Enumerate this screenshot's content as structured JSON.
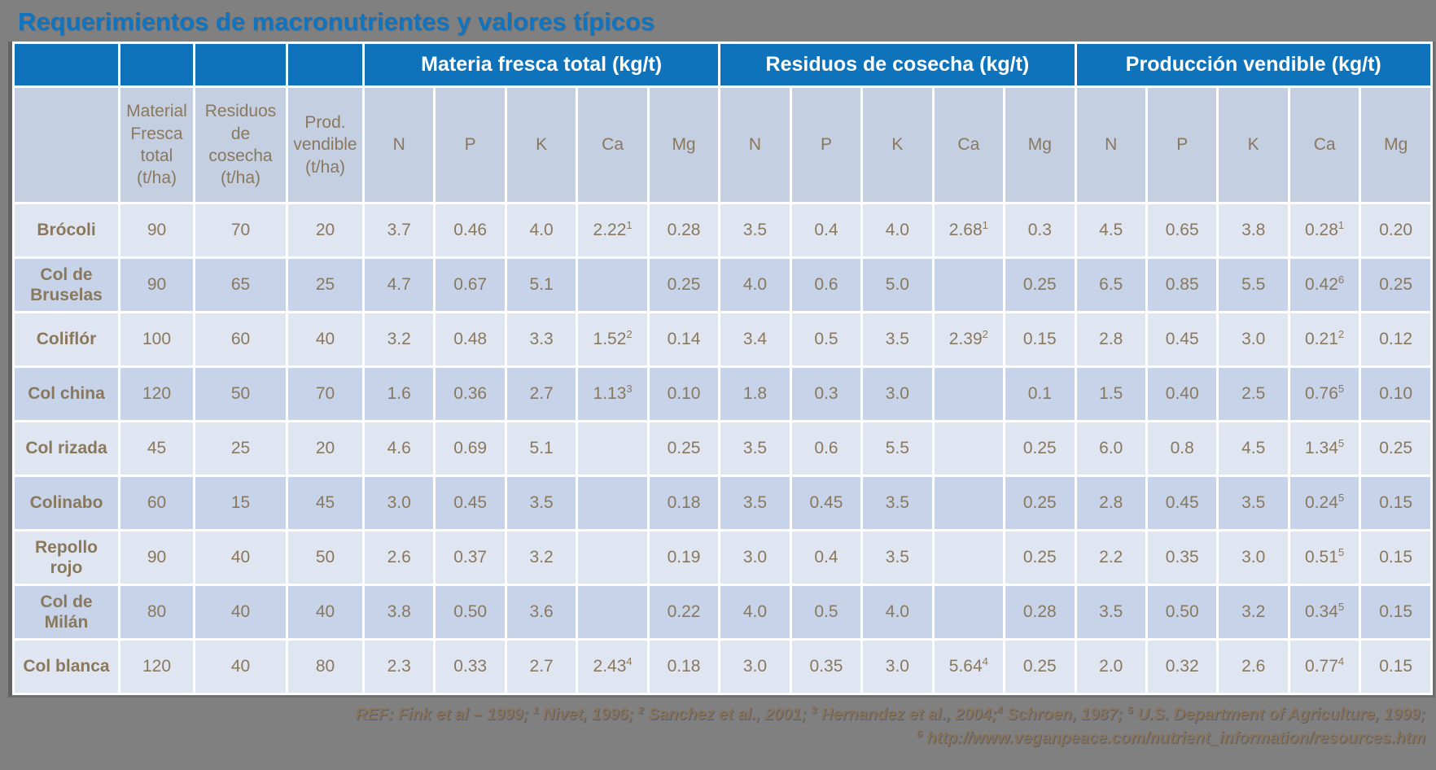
{
  "title": "Requerimientos de macronutrientes y valores típicos",
  "table": {
    "group_headers": [
      "Materia fresca total (kg/t)",
      "Residuos de cosecha (kg/t)",
      "Producción vendible (kg/t)"
    ],
    "area_headers": [
      "Material Fresca total (t/ha)",
      "Residuos de cosecha (t/ha)",
      "Prod. vendible (t/ha)"
    ],
    "nutrient_headers": [
      "N",
      "P",
      "K",
      "Ca",
      "Mg"
    ],
    "rows": [
      {
        "crop": "Brócoli",
        "area": [
          "90",
          "70",
          "20"
        ],
        "materia_fresca": [
          "3.7",
          "0.46",
          "4.0",
          "2.22^1",
          "0.28"
        ],
        "residuos": [
          "3.5",
          "0.4",
          "4.0",
          "2.68^1",
          "0.3"
        ],
        "produccion": [
          "4.5",
          "0.65",
          "3.8",
          "0.28^1",
          "0.20"
        ]
      },
      {
        "crop": "Col de Bruselas",
        "area": [
          "90",
          "65",
          "25"
        ],
        "materia_fresca": [
          "4.7",
          "0.67",
          "5.1",
          "",
          "0.25"
        ],
        "residuos": [
          "4.0",
          "0.6",
          "5.0",
          "",
          "0.25"
        ],
        "produccion": [
          "6.5",
          "0.85",
          "5.5",
          "0.42^6",
          "0.25"
        ]
      },
      {
        "crop": "Coliflór",
        "area": [
          "100",
          "60",
          "40"
        ],
        "materia_fresca": [
          "3.2",
          "0.48",
          "3.3",
          "1.52^2",
          "0.14"
        ],
        "residuos": [
          "3.4",
          "0.5",
          "3.5",
          "2.39^2",
          "0.15"
        ],
        "produccion": [
          "2.8",
          "0.45",
          "3.0",
          "0.21^2",
          "0.12"
        ]
      },
      {
        "crop": "Col china",
        "area": [
          "120",
          "50",
          "70"
        ],
        "materia_fresca": [
          "1.6",
          "0.36",
          "2.7",
          "1.13^3",
          "0.10"
        ],
        "residuos": [
          "1.8",
          "0.3",
          "3.0",
          "",
          "0.1"
        ],
        "produccion": [
          "1.5",
          "0.40",
          "2.5",
          "0.76^5",
          "0.10"
        ]
      },
      {
        "crop": "Col rizada",
        "area": [
          "45",
          "25",
          "20"
        ],
        "materia_fresca": [
          "4.6",
          "0.69",
          "5.1",
          "",
          "0.25"
        ],
        "residuos": [
          "3.5",
          "0.6",
          "5.5",
          "",
          "0.25"
        ],
        "produccion": [
          "6.0",
          "0.8",
          "4.5",
          "1.34^5",
          "0.25"
        ]
      },
      {
        "crop": "Colinabo",
        "area": [
          "60",
          "15",
          "45"
        ],
        "materia_fresca": [
          "3.0",
          "0.45",
          "3.5",
          "",
          "0.18"
        ],
        "residuos": [
          "3.5",
          "0.45",
          "3.5",
          "",
          "0.25"
        ],
        "produccion": [
          "2.8",
          "0.45",
          "3.5",
          "0.24^5",
          "0.15"
        ]
      },
      {
        "crop": "Repollo rojo",
        "area": [
          "90",
          "40",
          "50"
        ],
        "materia_fresca": [
          "2.6",
          "0.37",
          "3.2",
          "",
          "0.19"
        ],
        "residuos": [
          "3.0",
          "0.4",
          "3.5",
          "",
          "0.25"
        ],
        "produccion": [
          "2.2",
          "0.35",
          "3.0",
          "0.51^5",
          "0.15"
        ]
      },
      {
        "crop": "Col de Milán",
        "area": [
          "80",
          "40",
          "40"
        ],
        "materia_fresca": [
          "3.8",
          "0.50",
          "3.6",
          "",
          "0.22"
        ],
        "residuos": [
          "4.0",
          "0.5",
          "4.0",
          "",
          "0.28"
        ],
        "produccion": [
          "3.5",
          "0.50",
          "3.2",
          "0.34^5",
          "0.15"
        ]
      },
      {
        "crop": "Col blanca",
        "area": [
          "120",
          "40",
          "80"
        ],
        "materia_fresca": [
          "2.3",
          "0.33",
          "2.7",
          "2.43^4",
          "0.18"
        ],
        "residuos": [
          "3.0",
          "0.35",
          "3.0",
          "5.64^4",
          "0.25"
        ],
        "produccion": [
          "2.0",
          "0.32",
          "2.6",
          "0.77^4",
          "0.15"
        ]
      }
    ]
  },
  "footer": {
    "line1": "REF: Fink et al – 1999; ^1 Nivet, 1996; ^2 Sanchez et al., 2001; ^3 Hernandez et al., 2004;^4 Schroen, 1987; ^5 U.S. Department of Agriculture, 1999;",
    "line2": "^6 http://www.veganpeace.com/nutrient_information/resources.htm"
  },
  "colors": {
    "background": "#808080",
    "title": "#1174bf",
    "header_blue": "#0e73ba",
    "header_text": "#ffffff",
    "subheader_bg": "#c5cfe2",
    "row_light": "#e0e6f1",
    "row_dark": "#c7d3e9",
    "cell_text": "#8a785d",
    "footer_text": "#8a7459"
  }
}
